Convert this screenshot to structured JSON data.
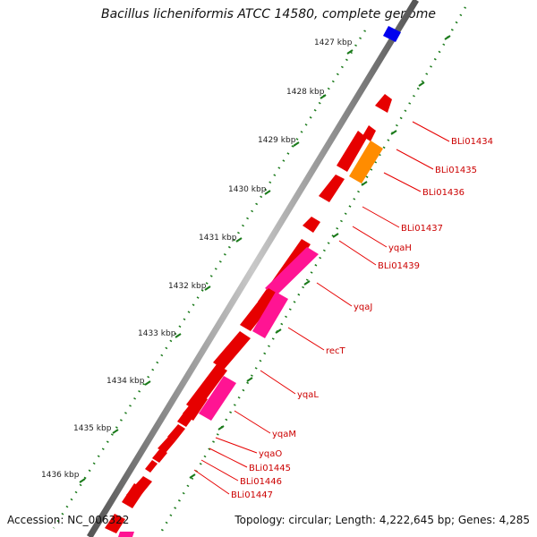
{
  "header": {
    "title": "Bacillus licheniformis ATCC 14580, complete genome"
  },
  "footer": {
    "accession": "Accession: NC_006322",
    "topology": "Topology: circular; Length: 4,222,645 bp; Genes: 4,285"
  },
  "scale": {
    "ticks": [
      "1427 kbp",
      "1428 kbp",
      "1429 kbp",
      "1430 kbp",
      "1431 kbp",
      "1432 kbp",
      "1433 kbp",
      "1434 kbp",
      "1435 kbp",
      "1436 kbp"
    ]
  },
  "genes": {
    "labeled": [
      "BLi01434",
      "BLi01435",
      "BLi01436",
      "BLi01437",
      "yqaH",
      "BLi01439",
      "yqaJ",
      "recT",
      "yqaL",
      "yqaM",
      "yqaO",
      "BLi01445",
      "BLi01446",
      "BLi01447"
    ]
  },
  "colors": {
    "gene_red": "#e60000",
    "gene_pink": "#ff1493",
    "gene_orange": "#ff8c00",
    "gene_blue": "#0000ee",
    "tick_green": "#1a7a1a",
    "backbone_gray": "#808080"
  }
}
